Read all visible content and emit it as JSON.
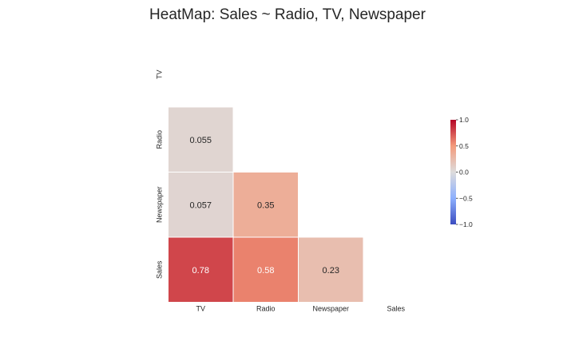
{
  "chart_data": {
    "type": "heatmap",
    "title": "HeatMap: Sales ~ Radio, TV,  Newspaper",
    "row_labels": [
      "TV",
      "Radio",
      "Newspaper",
      "Sales"
    ],
    "col_labels": [
      "TV",
      "Radio",
      "Newspaper",
      "Sales"
    ],
    "mask": "upper-triangle-including-diagonal",
    "cells": [
      {
        "row": "Radio",
        "col": "TV",
        "value": 0.055,
        "label": "0.055"
      },
      {
        "row": "Newspaper",
        "col": "TV",
        "value": 0.057,
        "label": "0.057"
      },
      {
        "row": "Newspaper",
        "col": "Radio",
        "value": 0.35,
        "label": "0.35"
      },
      {
        "row": "Sales",
        "col": "TV",
        "value": 0.78,
        "label": "0.78"
      },
      {
        "row": "Sales",
        "col": "Radio",
        "value": 0.58,
        "label": "0.58"
      },
      {
        "row": "Sales",
        "col": "Newspaper",
        "value": 0.23,
        "label": "0.23"
      }
    ],
    "colormap": "coolwarm",
    "vmin": -1.0,
    "vmax": 1.0,
    "colorbar": {
      "ticks": [
        1.0,
        0.5,
        0.0,
        -0.5,
        -1.0
      ],
      "tick_labels": [
        "1.0",
        "0.5",
        "0.0",
        "−0.5",
        "−1.0"
      ]
    },
    "grid": false,
    "colors": {
      "text_dark": "#262626",
      "text_light": "#ffffff",
      "cell_border": "#ffffff"
    }
  }
}
